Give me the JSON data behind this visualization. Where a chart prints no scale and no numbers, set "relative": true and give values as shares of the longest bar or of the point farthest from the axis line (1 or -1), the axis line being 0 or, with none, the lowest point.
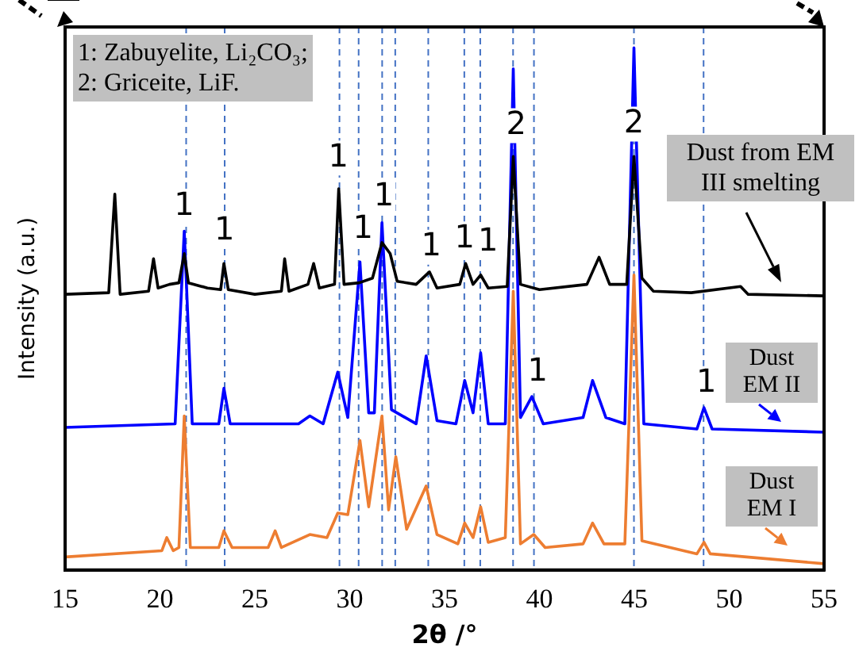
{
  "chart_data": {
    "type": "line",
    "xlabel": "2θ /°",
    "ylabel": "Intensity (a.u.)",
    "relative": true,
    "xlim": [
      15,
      55
    ],
    "xticks": [
      15,
      20,
      25,
      30,
      35,
      40,
      45,
      50,
      55
    ],
    "grid": false,
    "legend": "right",
    "marker": "none",
    "line_style": "solid",
    "series": [
      {
        "name": "Dust from EM III smelting",
        "color": "#000000",
        "x": [
          15,
          17.3,
          17.62,
          17.9,
          19.4,
          19.66,
          19.9,
          20.5,
          21.0,
          21.28,
          21.5,
          22.5,
          23.2,
          23.37,
          23.6,
          25,
          26.4,
          26.57,
          26.8,
          27.8,
          28.1,
          28.4,
          29.2,
          29.42,
          29.7,
          30.5,
          31.2,
          31.7,
          32.13,
          32.5,
          33.5,
          34.2,
          34.6,
          35.8,
          36.11,
          36.5,
          36.9,
          37.3,
          38.3,
          38.62,
          39.0,
          40,
          42.5,
          43.14,
          43.7,
          44.6,
          44.98,
          45.4,
          46,
          48,
          50.6,
          51,
          55
        ],
        "values": [
          0.528,
          0.531,
          0.72,
          0.528,
          0.534,
          0.596,
          0.54,
          0.547,
          0.55,
          0.606,
          0.55,
          0.54,
          0.537,
          0.587,
          0.537,
          0.528,
          0.534,
          0.596,
          0.534,
          0.547,
          0.587,
          0.54,
          0.547,
          0.73,
          0.547,
          0.55,
          0.559,
          0.627,
          0.606,
          0.553,
          0.547,
          0.571,
          0.54,
          0.547,
          0.587,
          0.547,
          0.565,
          0.54,
          0.543,
          0.792,
          0.547,
          0.537,
          0.547,
          0.599,
          0.547,
          0.547,
          0.792,
          0.559,
          0.534,
          0.531,
          0.543,
          0.528,
          0.525
        ]
      },
      {
        "name": "Dust EM II",
        "color": "#0000ff",
        "x": [
          15,
          20.8,
          21.28,
          21.7,
          23.1,
          23.37,
          23.7,
          27.3,
          27.9,
          28.6,
          29.37,
          29.9,
          30.54,
          31.0,
          31.3,
          31.7,
          32.2,
          33.5,
          34.03,
          34.6,
          35.6,
          36.06,
          36.5,
          36.9,
          37.3,
          38.2,
          38.62,
          39.0,
          39.6,
          40.2,
          42.3,
          42.8,
          43.5,
          44.5,
          44.98,
          45.5,
          48.3,
          48.67,
          49.1,
          55
        ],
        "values": [
          0.273,
          0.28,
          0.649,
          0.28,
          0.28,
          0.348,
          0.28,
          0.28,
          0.295,
          0.28,
          0.379,
          0.292,
          0.59,
          0.301,
          0.301,
          0.665,
          0.307,
          0.28,
          0.41,
          0.286,
          0.28,
          0.363,
          0.301,
          0.416,
          0.28,
          0.28,
          0.96,
          0.292,
          0.332,
          0.28,
          0.292,
          0.363,
          0.292,
          0.28,
          1,
          0.28,
          0.27,
          0.311,
          0.27,
          0.264
        ]
      },
      {
        "name": "Dust EM I",
        "color": "#ed7d31",
        "x": [
          15,
          20.1,
          20.36,
          20.7,
          21.0,
          21.28,
          21.6,
          23.1,
          23.37,
          23.8,
          25.7,
          26.07,
          26.4,
          27.9,
          28.8,
          29.37,
          29.9,
          30.54,
          31.0,
          31.7,
          32.05,
          32.43,
          33.0,
          34.03,
          34.6,
          35.7,
          36.06,
          36.5,
          36.9,
          37.3,
          38.2,
          38.62,
          39.0,
          39.7,
          40.3,
          42.3,
          42.8,
          43.4,
          44.5,
          44.98,
          45.4,
          48.3,
          48.67,
          49,
          55
        ],
        "values": [
          0.025,
          0.037,
          0.062,
          0.037,
          0.043,
          0.295,
          0.043,
          0.043,
          0.075,
          0.043,
          0.043,
          0.075,
          0.043,
          0.068,
          0.062,
          0.109,
          0.106,
          0.248,
          0.121,
          0.295,
          0.115,
          0.217,
          0.078,
          0.161,
          0.068,
          0.05,
          0.09,
          0.062,
          0.121,
          0.053,
          0.062,
          0.534,
          0.05,
          0.068,
          0.043,
          0.05,
          0.09,
          0.05,
          0.05,
          0.565,
          0.056,
          0.031,
          0.053,
          0.031,
          0.012
        ]
      }
    ],
    "ref_lines": [
      {
        "axis": "x",
        "value": 21.38,
        "color": "#4472c4",
        "line_style": "dashed"
      },
      {
        "axis": "x",
        "value": 23.41,
        "color": "#4472c4",
        "line_style": "dashed"
      },
      {
        "axis": "x",
        "value": 29.46,
        "color": "#4472c4",
        "line_style": "dashed"
      },
      {
        "axis": "x",
        "value": 30.47,
        "color": "#4472c4",
        "line_style": "dashed"
      },
      {
        "axis": "x",
        "value": 31.71,
        "color": "#4472c4",
        "line_style": "dashed"
      },
      {
        "axis": "x",
        "value": 32.4,
        "color": "#4472c4",
        "line_style": "dashed"
      },
      {
        "axis": "x",
        "value": 34.14,
        "color": "#4472c4",
        "line_style": "dashed"
      },
      {
        "axis": "x",
        "value": 36.04,
        "color": "#4472c4",
        "line_style": "dashed"
      },
      {
        "axis": "x",
        "value": 36.88,
        "color": "#4472c4",
        "line_style": "dashed"
      },
      {
        "axis": "x",
        "value": 38.61,
        "color": "#4472c4",
        "line_style": "dashed"
      },
      {
        "axis": "x",
        "value": 39.71,
        "color": "#4472c4",
        "line_style": "dashed"
      },
      {
        "axis": "x",
        "value": 44.98,
        "color": "#4472c4",
        "line_style": "dashed"
      },
      {
        "axis": "x",
        "value": 48.65,
        "color": "#4472c4",
        "line_style": "dashed"
      }
    ],
    "annotations": [
      "1: Zabuyelite, Li₂CO₃;",
      "2: Griceite, LiF.",
      {
        "text": "1",
        "x": 21.28,
        "y": 0.696
      },
      {
        "text": "1",
        "x": 23.4,
        "y": 0.649
      },
      {
        "text": "1",
        "x": 29.4,
        "y": 0.789
      },
      {
        "text": "1",
        "x": 30.7,
        "y": 0.652
      },
      {
        "text": "1",
        "x": 31.8,
        "y": 0.714
      },
      {
        "text": "1",
        "x": 34.3,
        "y": 0.618
      },
      {
        "text": "1",
        "x": 36.06,
        "y": 0.634
      },
      {
        "text": "1",
        "x": 37.29,
        "y": 0.627
      },
      {
        "text": "2",
        "x": 38.77,
        "y": 0.851
      },
      {
        "text": "2",
        "x": 44.98,
        "y": 0.854
      },
      {
        "text": "1",
        "x": 39.9,
        "y": 0.379
      },
      {
        "text": "1",
        "x": 48.8,
        "y": 0.357
      }
    ]
  }
}
